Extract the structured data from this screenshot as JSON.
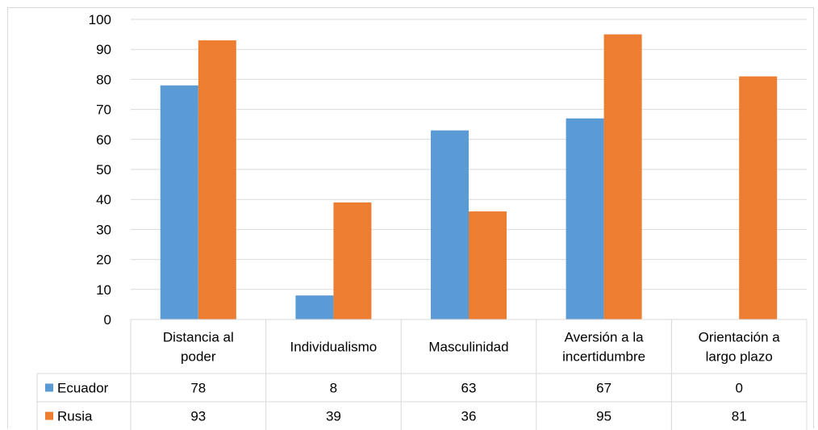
{
  "chart_data": {
    "type": "bar",
    "categories": [
      [
        "Distancia al",
        "poder"
      ],
      [
        "Individualismo"
      ],
      [
        "Masculinidad"
      ],
      [
        "Aversión a la",
        "incertidumbre"
      ],
      [
        "Orientación a",
        "largo plazo"
      ]
    ],
    "series": [
      {
        "name": "Ecuador",
        "values": [
          78,
          8,
          63,
          67,
          0
        ],
        "labels": [
          "78",
          "8",
          "63",
          "67",
          "0"
        ],
        "color": "#5b9bd5"
      },
      {
        "name": "Rusia",
        "values": [
          93,
          39,
          36,
          95,
          81
        ],
        "labels": [
          "93",
          "39",
          "36",
          "95",
          "81"
        ],
        "color": "#ed7d31"
      }
    ],
    "ylim": [
      0,
      100
    ],
    "yticks": [
      "0",
      "10",
      "20",
      "30",
      "40",
      "50",
      "60",
      "70",
      "80",
      "90",
      "100"
    ],
    "grid": true,
    "legend": "data-table"
  }
}
